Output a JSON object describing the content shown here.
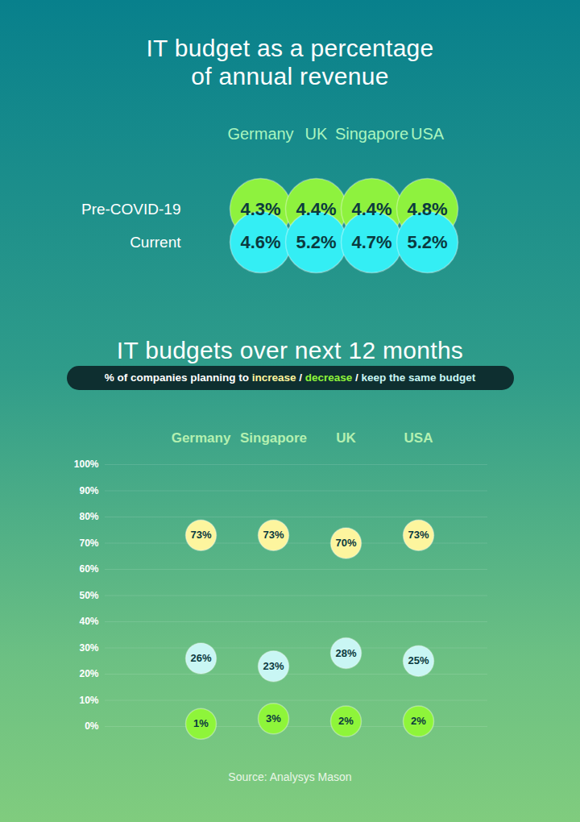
{
  "chart_data": [
    {
      "type": "matrix",
      "title": "IT budget as a percentage of annual revenue",
      "categories": [
        "Germany",
        "UK",
        "Singapore",
        "USA"
      ],
      "series": [
        {
          "name": "Pre-COVID-19",
          "color": "#8ef23e",
          "values": [
            4.3,
            4.4,
            4.4,
            4.8
          ],
          "value_labels": [
            "4.3%",
            "4.4%",
            "4.4%",
            "4.8%"
          ]
        },
        {
          "name": "Current",
          "color": "#34eef4",
          "values": [
            4.6,
            5.2,
            4.7,
            5.2
          ],
          "value_labels": [
            "4.6%",
            "5.2%",
            "4.7%",
            "5.2%"
          ]
        }
      ],
      "data_labels": true
    },
    {
      "type": "dot",
      "title": "IT budgets over next 12 months",
      "subtitle": "% of companies planning to increase / decrease / keep the same budget",
      "caption": "Source: Analysys Mason",
      "categories": [
        "Germany",
        "Singapore",
        "UK",
        "USA"
      ],
      "series": [
        {
          "name": "increase",
          "color": "#fdf59e",
          "values": [
            73,
            73,
            70,
            73
          ],
          "value_labels": [
            "73%",
            "73%",
            "70%",
            "73%"
          ]
        },
        {
          "name": "decrease",
          "color": "#8ef53a",
          "values": [
            1,
            3,
            2,
            2
          ],
          "value_labels": [
            "1%",
            "3%",
            "2%",
            "2%"
          ]
        },
        {
          "name": "keep the same budget",
          "color": "#c9f6f4",
          "values": [
            26,
            23,
            28,
            25
          ],
          "value_labels": [
            "26%",
            "23%",
            "28%",
            "25%"
          ]
        }
      ],
      "ylim": [
        0,
        100
      ],
      "yticks": [
        {
          "value": 0,
          "label": "0%"
        },
        {
          "value": 10,
          "label": "10%"
        },
        {
          "value": 20,
          "label": "20%"
        },
        {
          "value": 30,
          "label": "30%"
        },
        {
          "value": 40,
          "label": "40%"
        },
        {
          "value": 50,
          "label": "50%"
        },
        {
          "value": 60,
          "label": "60%"
        },
        {
          "value": 70,
          "label": "70%"
        },
        {
          "value": 80,
          "label": "80%"
        },
        {
          "value": 90,
          "label": "90%"
        },
        {
          "value": 100,
          "label": "100%"
        }
      ],
      "grid": true,
      "data_labels": true
    }
  ]
}
